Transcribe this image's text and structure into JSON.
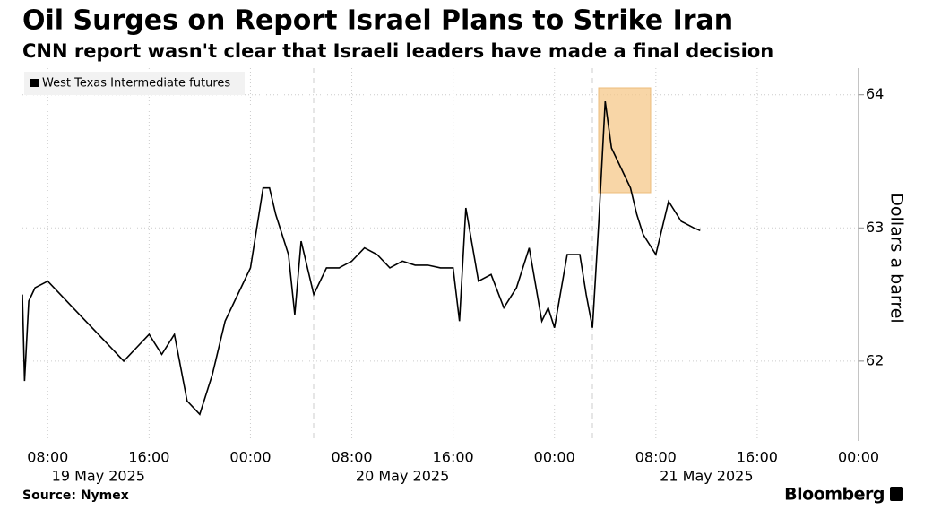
{
  "chart_data": {
    "type": "line",
    "title": "Oil Surges on Report Israel Plans to Strike Iran",
    "subtitle": "CNN report wasn't clear that Israeli leaders have made a final decision",
    "y_axis_label": "Dollars a barrel",
    "source": "Source: Nymex",
    "brand": "Bloomberg",
    "legend_position": "top-left",
    "grid": true,
    "xlim": [
      "2025-05-19T06:00",
      "2025-05-22T00:00"
    ],
    "xticks": [
      {
        "value": "2025-05-19T08:00",
        "label": "08:00"
      },
      {
        "value": "2025-05-19T16:00",
        "label": "16:00"
      },
      {
        "value": "2025-05-20T00:00",
        "label": "00:00"
      },
      {
        "value": "2025-05-20T08:00",
        "label": "08:00"
      },
      {
        "value": "2025-05-20T16:00",
        "label": "16:00"
      },
      {
        "value": "2025-05-21T00:00",
        "label": "00:00"
      },
      {
        "value": "2025-05-21T08:00",
        "label": "08:00"
      },
      {
        "value": "2025-05-21T16:00",
        "label": "16:00"
      },
      {
        "value": "2025-05-22T00:00",
        "label": "00:00"
      }
    ],
    "date_labels": [
      {
        "value": "2025-05-19T12:00",
        "label": "19 May 2025"
      },
      {
        "value": "2025-05-20T12:00",
        "label": "20 May 2025"
      },
      {
        "value": "2025-05-21T12:00",
        "label": "21 May 2025"
      }
    ],
    "ylim": [
      61.4,
      64.2
    ],
    "yticks": [
      62,
      63,
      64
    ],
    "x": [
      "2025-05-19T06:00",
      "2025-05-19T06:10",
      "2025-05-19T06:30",
      "2025-05-19T07:00",
      "2025-05-19T08:00",
      "2025-05-19T09:00",
      "2025-05-19T10:00",
      "2025-05-19T11:00",
      "2025-05-19T12:00",
      "2025-05-19T13:00",
      "2025-05-19T14:00",
      "2025-05-19T15:00",
      "2025-05-19T16:00",
      "2025-05-19T17:00",
      "2025-05-19T18:00",
      "2025-05-19T19:00",
      "2025-05-19T20:00",
      "2025-05-19T21:00",
      "2025-05-19T22:00",
      "2025-05-19T23:00",
      "2025-05-20T00:00",
      "2025-05-20T01:00",
      "2025-05-20T01:30",
      "2025-05-20T02:00",
      "2025-05-20T03:00",
      "2025-05-20T03:30",
      "2025-05-20T04:00",
      "2025-05-20T05:00",
      "2025-05-20T06:00",
      "2025-05-20T07:00",
      "2025-05-20T08:00",
      "2025-05-20T09:00",
      "2025-05-20T10:00",
      "2025-05-20T11:00",
      "2025-05-20T12:00",
      "2025-05-20T13:00",
      "2025-05-20T14:00",
      "2025-05-20T15:00",
      "2025-05-20T16:00",
      "2025-05-20T16:30",
      "2025-05-20T17:00",
      "2025-05-20T18:00",
      "2025-05-20T19:00",
      "2025-05-20T20:00",
      "2025-05-20T21:00",
      "2025-05-20T22:00",
      "2025-05-20T23:00",
      "2025-05-20T23:30",
      "2025-05-21T00:00",
      "2025-05-21T01:00",
      "2025-05-21T02:00",
      "2025-05-21T02:30",
      "2025-05-21T03:00",
      "2025-05-21T03:30",
      "2025-05-21T04:00",
      "2025-05-21T04:30",
      "2025-05-21T05:00",
      "2025-05-21T06:00",
      "2025-05-21T06:30",
      "2025-05-21T07:00",
      "2025-05-21T08:00",
      "2025-05-21T09:00",
      "2025-05-21T10:00",
      "2025-05-21T11:00",
      "2025-05-21T11:30"
    ],
    "series": [
      {
        "name": "West Texas Intermediate futures",
        "color": "#000000",
        "values": [
          62.5,
          61.85,
          62.45,
          62.55,
          62.6,
          62.5,
          62.4,
          62.3,
          62.2,
          62.1,
          62.0,
          62.1,
          62.2,
          62.05,
          62.2,
          61.7,
          61.6,
          61.9,
          62.3,
          62.5,
          62.7,
          63.3,
          63.3,
          63.1,
          62.8,
          62.35,
          62.9,
          62.5,
          62.7,
          62.7,
          62.75,
          62.85,
          62.8,
          62.7,
          62.75,
          62.72,
          62.72,
          62.7,
          62.7,
          62.3,
          63.15,
          62.6,
          62.65,
          62.4,
          62.55,
          62.85,
          62.3,
          62.4,
          62.25,
          62.8,
          62.8,
          62.5,
          62.25,
          63.05,
          63.95,
          63.6,
          63.5,
          63.3,
          63.1,
          62.95,
          62.8,
          63.2,
          63.05,
          63.0,
          62.98
        ]
      }
    ]
  }
}
